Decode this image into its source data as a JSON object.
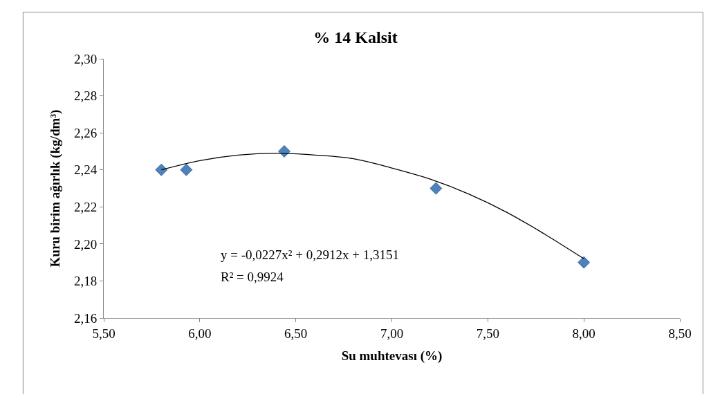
{
  "chart_data": {
    "type": "scatter",
    "title": "% 14 Kalsit",
    "xlabel": "Su muhtevası (%)",
    "ylabel": "Kuru birim ağırlık (kg/dm³)",
    "annotations": [
      "y = -0,0227x² + 0,2912x + 1,3151",
      "R² = 0,9924"
    ],
    "series": [
      {
        "marker": "diamond",
        "color": "#4f81bd",
        "x": [
          5.8,
          5.93,
          6.44,
          7.23,
          8.0
        ],
        "values": [
          2.24,
          2.24,
          2.25,
          2.23,
          2.19
        ]
      },
      {
        "type": "line",
        "marker": "none",
        "line_style": "solid",
        "color": "#000000",
        "x": [
          5.8,
          6.0,
          6.2,
          6.4,
          6.6,
          6.8,
          7.0,
          7.2,
          7.4,
          7.6,
          7.8,
          8.0
        ],
        "values": [
          2.24,
          2.245,
          2.248,
          2.249,
          2.248,
          2.246,
          2.241,
          2.235,
          2.227,
          2.217,
          2.205,
          2.192
        ]
      }
    ],
    "xlim": [
      5.5,
      8.5
    ],
    "ylim": [
      2.16,
      2.3
    ],
    "xticks": [
      {
        "value": 5.5,
        "label": "5,50"
      },
      {
        "value": 6.0,
        "label": "6,00"
      },
      {
        "value": 6.5,
        "label": "6,50"
      },
      {
        "value": 7.0,
        "label": "7,00"
      },
      {
        "value": 7.5,
        "label": "7,50"
      },
      {
        "value": 8.0,
        "label": "8,00"
      },
      {
        "value": 8.5,
        "label": "8,50"
      }
    ],
    "yticks": [
      {
        "value": 2.16,
        "label": "2,16"
      },
      {
        "value": 2.18,
        "label": "2,18"
      },
      {
        "value": 2.2,
        "label": "2,20"
      },
      {
        "value": 2.22,
        "label": "2,22"
      },
      {
        "value": 2.24,
        "label": "2,24"
      },
      {
        "value": 2.26,
        "label": "2,26"
      },
      {
        "value": 2.28,
        "label": "2,28"
      },
      {
        "value": 2.3,
        "label": "2,30"
      }
    ],
    "grid": false
  }
}
